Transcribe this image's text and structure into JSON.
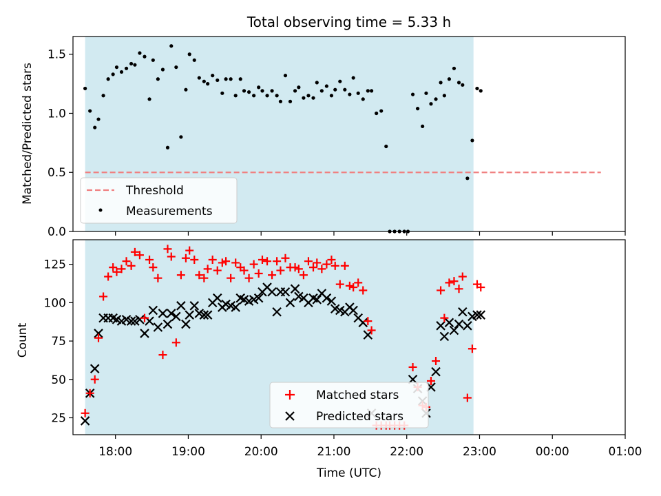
{
  "figure": {
    "title": "Total observing time = 5.33 h",
    "xlabel": "Time (UTC)"
  },
  "colors": {
    "shade": "#add8e6",
    "threshold": "#f08080",
    "measurements": "#000000",
    "matched": "#ff0000",
    "predicted": "#000000"
  },
  "chart_data": [
    {
      "type": "scatter",
      "ylabel": "Matched/Predicted stars",
      "xlim": [
        "17:25",
        "01:00"
      ],
      "ylim": [
        0,
        1.65
      ],
      "yticks": [
        0.0,
        0.5,
        1.0,
        1.5
      ],
      "ytick_labels": [
        "0.0",
        "0.5",
        "1.0",
        "1.5"
      ],
      "shaded_span": [
        "17:35",
        "22:55"
      ],
      "threshold": {
        "name": "Threshold",
        "value": 0.5,
        "x": [
          "17:35",
          "00:40"
        ],
        "style": "dashed"
      },
      "series": [
        {
          "name": "Measurements",
          "marker": "dot",
          "points": [
            [
              "17:35",
              1.21
            ],
            [
              "17:39",
              1.02
            ],
            [
              "17:43",
              0.88
            ],
            [
              "17:46",
              0.95
            ],
            [
              "17:50",
              1.15
            ],
            [
              "17:54",
              1.29
            ],
            [
              "17:58",
              1.33
            ],
            [
              "18:01",
              1.39
            ],
            [
              "18:05",
              1.35
            ],
            [
              "18:09",
              1.38
            ],
            [
              "18:13",
              1.42
            ],
            [
              "18:16",
              1.41
            ],
            [
              "18:20",
              1.51
            ],
            [
              "18:24",
              1.48
            ],
            [
              "18:28",
              1.12
            ],
            [
              "18:31",
              1.45
            ],
            [
              "18:35",
              1.29
            ],
            [
              "18:39",
              1.37
            ],
            [
              "18:43",
              0.71
            ],
            [
              "18:46",
              1.57
            ],
            [
              "18:50",
              1.39
            ],
            [
              "18:54",
              0.8
            ],
            [
              "18:58",
              1.2
            ],
            [
              "19:01",
              1.5
            ],
            [
              "19:05",
              1.45
            ],
            [
              "19:09",
              1.3
            ],
            [
              "19:13",
              1.27
            ],
            [
              "19:16",
              1.25
            ],
            [
              "19:20",
              1.32
            ],
            [
              "19:24",
              1.28
            ],
            [
              "19:28",
              1.17
            ],
            [
              "19:31",
              1.29
            ],
            [
              "19:35",
              1.29
            ],
            [
              "19:39",
              1.15
            ],
            [
              "19:43",
              1.29
            ],
            [
              "19:46",
              1.19
            ],
            [
              "19:50",
              1.18
            ],
            [
              "19:54",
              1.15
            ],
            [
              "19:58",
              1.22
            ],
            [
              "20:01",
              1.19
            ],
            [
              "20:05",
              1.15
            ],
            [
              "20:09",
              1.19
            ],
            [
              "20:13",
              1.15
            ],
            [
              "20:16",
              1.1
            ],
            [
              "20:20",
              1.32
            ],
            [
              "20:24",
              1.1
            ],
            [
              "20:28",
              1.19
            ],
            [
              "20:31",
              1.22
            ],
            [
              "20:35",
              1.13
            ],
            [
              "20:39",
              1.15
            ],
            [
              "20:43",
              1.13
            ],
            [
              "20:46",
              1.26
            ],
            [
              "20:50",
              1.19
            ],
            [
              "20:54",
              1.23
            ],
            [
              "20:58",
              1.15
            ],
            [
              "21:01",
              1.2
            ],
            [
              "21:05",
              1.27
            ],
            [
              "21:09",
              1.2
            ],
            [
              "21:13",
              1.16
            ],
            [
              "21:16",
              1.3
            ],
            [
              "21:20",
              1.17
            ],
            [
              "21:24",
              1.12
            ],
            [
              "21:28",
              1.19
            ],
            [
              "21:31",
              1.19
            ],
            [
              "21:35",
              1.0
            ],
            [
              "21:39",
              1.02
            ],
            [
              "21:43",
              0.72
            ],
            [
              "21:46",
              0.0
            ],
            [
              "21:50",
              0.0
            ],
            [
              "21:54",
              0.0
            ],
            [
              "21:58",
              0.0
            ],
            [
              "22:01",
              0.0
            ],
            [
              "22:05",
              1.16
            ],
            [
              "22:09",
              1.04
            ],
            [
              "22:13",
              0.89
            ],
            [
              "22:16",
              1.17
            ],
            [
              "22:20",
              1.08
            ],
            [
              "22:24",
              1.12
            ],
            [
              "22:28",
              1.26
            ],
            [
              "22:31",
              1.15
            ],
            [
              "22:35",
              1.29
            ],
            [
              "22:39",
              1.38
            ],
            [
              "22:43",
              1.26
            ],
            [
              "22:46",
              1.24
            ],
            [
              "22:50",
              0.45
            ],
            [
              "22:54",
              0.77
            ],
            [
              "22:58",
              1.21
            ],
            [
              "23:01",
              1.19
            ]
          ]
        }
      ]
    },
    {
      "type": "scatter",
      "ylabel": "Count",
      "xlim": [
        "17:25",
        "01:00"
      ],
      "ylim": [
        14,
        141
      ],
      "yticks": [
        25,
        50,
        75,
        100,
        125
      ],
      "ytick_labels": [
        "25",
        "50",
        "75",
        "100",
        "125"
      ],
      "xticks": [
        "18:00",
        "19:00",
        "20:00",
        "21:00",
        "22:00",
        "23:00",
        "00:00",
        "01:00"
      ],
      "shaded_span": [
        "17:35",
        "22:55"
      ],
      "series": [
        {
          "name": "Matched stars",
          "marker": "plus",
          "points": [
            [
              "17:35",
              28
            ],
            [
              "17:39",
              41
            ],
            [
              "17:43",
              50
            ],
            [
              "17:46",
              77
            ],
            [
              "17:50",
              104
            ],
            [
              "17:54",
              117
            ],
            [
              "17:58",
              123
            ],
            [
              "18:01",
              120
            ],
            [
              "18:05",
              122
            ],
            [
              "18:09",
              127
            ],
            [
              "18:13",
              124
            ],
            [
              "18:16",
              133
            ],
            [
              "18:20",
              131
            ],
            [
              "18:24",
              90
            ],
            [
              "18:28",
              128
            ],
            [
              "18:31",
              123
            ],
            [
              "18:35",
              116
            ],
            [
              "18:39",
              66
            ],
            [
              "18:43",
              135
            ],
            [
              "18:46",
              130
            ],
            [
              "18:50",
              74
            ],
            [
              "18:54",
              118
            ],
            [
              "18:58",
              129
            ],
            [
              "19:01",
              134
            ],
            [
              "19:05",
              128
            ],
            [
              "19:09",
              118
            ],
            [
              "19:13",
              116
            ],
            [
              "19:16",
              122
            ],
            [
              "19:20",
              128
            ],
            [
              "19:24",
              121
            ],
            [
              "19:28",
              126
            ],
            [
              "19:31",
              127
            ],
            [
              "19:35",
              116
            ],
            [
              "19:39",
              126
            ],
            [
              "19:43",
              123
            ],
            [
              "19:46",
              121
            ],
            [
              "19:50",
              116
            ],
            [
              "19:54",
              125
            ],
            [
              "19:58",
              119
            ],
            [
              "20:01",
              128
            ],
            [
              "20:05",
              127
            ],
            [
              "20:09",
              118
            ],
            [
              "20:13",
              127
            ],
            [
              "20:16",
              121
            ],
            [
              "20:20",
              129
            ],
            [
              "20:24",
              123
            ],
            [
              "20:28",
              123
            ],
            [
              "20:31",
              122
            ],
            [
              "20:35",
              118
            ],
            [
              "20:39",
              127
            ],
            [
              "20:43",
              123
            ],
            [
              "20:46",
              126
            ],
            [
              "20:50",
              122
            ],
            [
              "20:54",
              125
            ],
            [
              "20:58",
              128
            ],
            [
              "21:01",
              124
            ],
            [
              "21:05",
              112
            ],
            [
              "21:09",
              124
            ],
            [
              "21:13",
              111
            ],
            [
              "21:16",
              110
            ],
            [
              "21:20",
              113
            ],
            [
              "21:24",
              108
            ],
            [
              "21:28",
              88
            ],
            [
              "21:31",
              82
            ],
            [
              "21:35",
              20
            ],
            [
              "21:39",
              20
            ],
            [
              "21:43",
              20
            ],
            [
              "21:46",
              20
            ],
            [
              "21:50",
              20
            ],
            [
              "21:54",
              20
            ],
            [
              "21:58",
              20
            ],
            [
              "22:05",
              58
            ],
            [
              "22:09",
              45
            ],
            [
              "22:13",
              33
            ],
            [
              "22:16",
              32
            ],
            [
              "22:20",
              49
            ],
            [
              "22:24",
              62
            ],
            [
              "22:28",
              108
            ],
            [
              "22:31",
              90
            ],
            [
              "22:35",
              113
            ],
            [
              "22:39",
              114
            ],
            [
              "22:43",
              109
            ],
            [
              "22:46",
              117
            ],
            [
              "22:50",
              38
            ],
            [
              "22:54",
              70
            ],
            [
              "22:58",
              112
            ],
            [
              "23:01",
              110
            ]
          ]
        },
        {
          "name": "Predicted stars",
          "marker": "x",
          "points": [
            [
              "17:35",
              23
            ],
            [
              "17:39",
              41
            ],
            [
              "17:43",
              57
            ],
            [
              "17:46",
              80
            ],
            [
              "17:50",
              90
            ],
            [
              "17:54",
              90
            ],
            [
              "17:58",
              90
            ],
            [
              "18:01",
              89
            ],
            [
              "18:05",
              88
            ],
            [
              "18:09",
              89
            ],
            [
              "18:13",
              88
            ],
            [
              "18:16",
              88
            ],
            [
              "18:20",
              89
            ],
            [
              "18:24",
              80
            ],
            [
              "18:28",
              88
            ],
            [
              "18:31",
              95
            ],
            [
              "18:35",
              84
            ],
            [
              "18:39",
              93
            ],
            [
              "18:43",
              86
            ],
            [
              "18:46",
              93
            ],
            [
              "18:50",
              91
            ],
            [
              "18:54",
              98
            ],
            [
              "18:58",
              86
            ],
            [
              "19:01",
              92
            ],
            [
              "19:05",
              98
            ],
            [
              "19:09",
              93
            ],
            [
              "19:13",
              92
            ],
            [
              "19:16",
              92
            ],
            [
              "19:20",
              100
            ],
            [
              "19:24",
              103
            ],
            [
              "19:28",
              97
            ],
            [
              "19:31",
              99
            ],
            [
              "19:35",
              98
            ],
            [
              "19:39",
              97
            ],
            [
              "19:43",
              103
            ],
            [
              "19:46",
              102
            ],
            [
              "19:50",
              101
            ],
            [
              "19:54",
              102
            ],
            [
              "19:58",
              103
            ],
            [
              "20:01",
              107
            ],
            [
              "20:05",
              110
            ],
            [
              "20:09",
              107
            ],
            [
              "20:13",
              94
            ],
            [
              "20:16",
              107
            ],
            [
              "20:20",
              107
            ],
            [
              "20:24",
              100
            ],
            [
              "20:28",
              109
            ],
            [
              "20:31",
              104
            ],
            [
              "20:35",
              103
            ],
            [
              "20:39",
              100
            ],
            [
              "20:43",
              103
            ],
            [
              "20:46",
              102
            ],
            [
              "20:50",
              106
            ],
            [
              "20:54",
              103
            ],
            [
              "20:58",
              101
            ],
            [
              "21:01",
              96
            ],
            [
              "21:05",
              95
            ],
            [
              "21:09",
              94
            ],
            [
              "21:13",
              97
            ],
            [
              "21:16",
              95
            ],
            [
              "21:20",
              90
            ],
            [
              "21:24",
              87
            ],
            [
              "21:28",
              79
            ],
            [
              "21:31",
              28
            ],
            [
              "22:05",
              50
            ],
            [
              "22:09",
              44
            ],
            [
              "22:13",
              36
            ],
            [
              "22:16",
              28
            ],
            [
              "22:20",
              45
            ],
            [
              "22:24",
              55
            ],
            [
              "22:28",
              85
            ],
            [
              "22:31",
              78
            ],
            [
              "22:35",
              87
            ],
            [
              "22:39",
              82
            ],
            [
              "22:43",
              86
            ],
            [
              "22:46",
              94
            ],
            [
              "22:50",
              85
            ],
            [
              "22:54",
              91
            ],
            [
              "22:58",
              92
            ],
            [
              "23:01",
              92
            ]
          ]
        }
      ]
    }
  ]
}
